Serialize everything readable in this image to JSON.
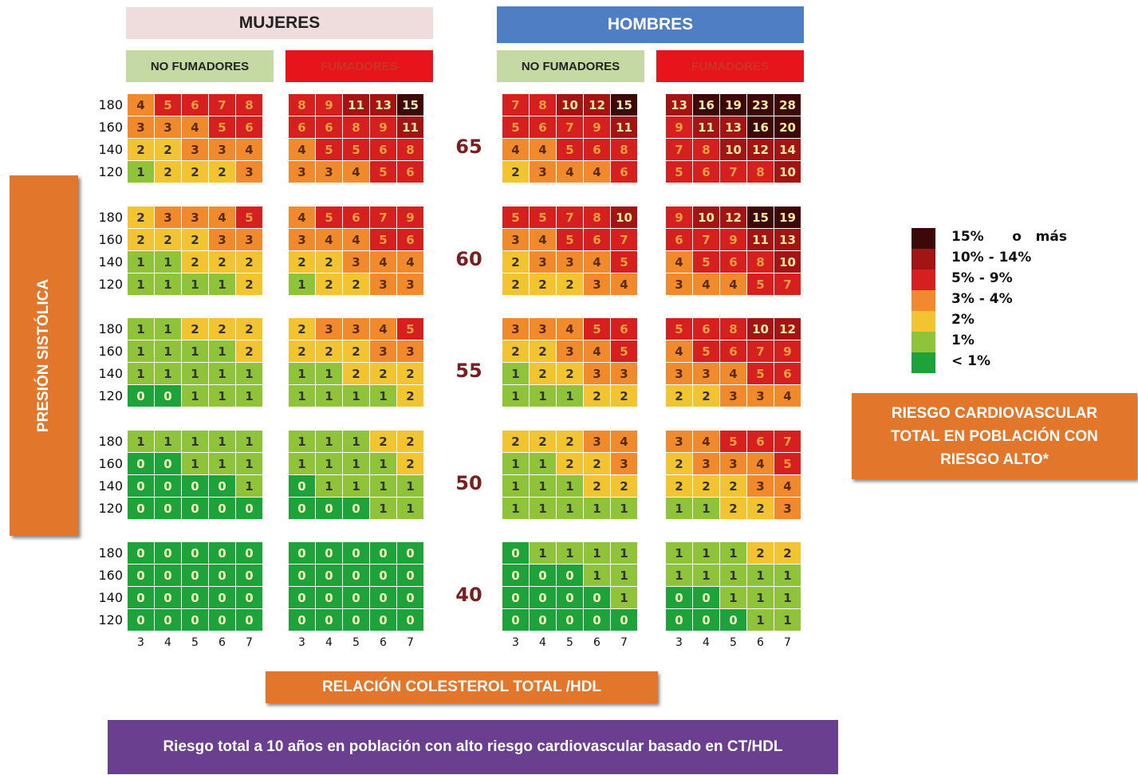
{
  "header": {
    "women": "MUJERES",
    "men": "HOMBRES",
    "non_smokers": "NO FUMADORES",
    "smokers": "FUMADORES"
  },
  "y_axis_label": "PRESIÓN SISTÓLICA",
  "x_axis_label": "RELACIÓN COLESTEROL TOTAL /HDL",
  "side_box": "RIESGO CARDIOVASCULAR TOTAL EN POBLACIÓN CON RIESGO ALTO*",
  "footer": "Riesgo total a 10 años en población con alto riesgo cardiovascular basado en CT/HDL",
  "legend": [
    {
      "label": "15%      o   más",
      "color": "#3d0808"
    },
    {
      "label": "10% - 14%",
      "color": "#a31515"
    },
    {
      "label": "5% - 9%",
      "color": "#d62020"
    },
    {
      "label": "3% - 4%",
      "color": "#f08a2c"
    },
    {
      "label": "2%",
      "color": "#f2c431"
    },
    {
      "label": "1%",
      "color": "#8fc43a"
    },
    {
      "label": "< 1%",
      "color": "#1ea33a"
    }
  ],
  "chart_data": {
    "type": "heatmap",
    "title": "",
    "xlabel": "RELACIÓN COLESTEROL TOTAL /HDL",
    "ylabel": "PRESIÓN SISTÓLICA",
    "x_ticks": [
      3,
      4,
      5,
      6,
      7
    ],
    "y_ticks": [
      180,
      160,
      140,
      120
    ],
    "ages": [
      65,
      60,
      55,
      50,
      40
    ],
    "panels": [
      {
        "sex": "MUJERES",
        "smoking": "NO FUMADORES",
        "grids": [
          [
            [
              4,
              5,
              6,
              7,
              8
            ],
            [
              3,
              3,
              4,
              5,
              6
            ],
            [
              2,
              2,
              3,
              3,
              4
            ],
            [
              1,
              2,
              2,
              2,
              3
            ]
          ],
          [
            [
              2,
              3,
              3,
              4,
              5
            ],
            [
              2,
              2,
              2,
              3,
              3
            ],
            [
              1,
              1,
              2,
              2,
              2
            ],
            [
              1,
              1,
              1,
              1,
              2
            ]
          ],
          [
            [
              1,
              1,
              2,
              2,
              2
            ],
            [
              1,
              1,
              1,
              1,
              2
            ],
            [
              1,
              1,
              1,
              1,
              1
            ],
            [
              0,
              0,
              1,
              1,
              1
            ]
          ],
          [
            [
              1,
              1,
              1,
              1,
              1
            ],
            [
              0,
              0,
              1,
              1,
              1
            ],
            [
              0,
              0,
              0,
              0,
              1
            ],
            [
              0,
              0,
              0,
              0,
              0
            ]
          ],
          [
            [
              0,
              0,
              0,
              0,
              0
            ],
            [
              0,
              0,
              0,
              0,
              0
            ],
            [
              0,
              0,
              0,
              0,
              0
            ],
            [
              0,
              0,
              0,
              0,
              0
            ]
          ]
        ]
      },
      {
        "sex": "MUJERES",
        "smoking": "FUMADORES",
        "grids": [
          [
            [
              8,
              9,
              11,
              13,
              15
            ],
            [
              6,
              6,
              8,
              9,
              11
            ],
            [
              4,
              5,
              5,
              6,
              8
            ],
            [
              3,
              3,
              4,
              5,
              6
            ]
          ],
          [
            [
              4,
              5,
              6,
              7,
              9
            ],
            [
              3,
              4,
              4,
              5,
              6
            ],
            [
              2,
              2,
              3,
              4,
              4
            ],
            [
              1,
              2,
              2,
              3,
              3
            ]
          ],
          [
            [
              2,
              3,
              3,
              4,
              5
            ],
            [
              2,
              2,
              2,
              3,
              3
            ],
            [
              1,
              1,
              2,
              2,
              2
            ],
            [
              1,
              1,
              1,
              1,
              2
            ]
          ],
          [
            [
              1,
              1,
              1,
              2,
              2
            ],
            [
              1,
              1,
              1,
              1,
              2
            ],
            [
              0,
              1,
              1,
              1,
              1
            ],
            [
              0,
              0,
              0,
              1,
              1
            ]
          ],
          [
            [
              0,
              0,
              0,
              0,
              0
            ],
            [
              0,
              0,
              0,
              0,
              0
            ],
            [
              0,
              0,
              0,
              0,
              0
            ],
            [
              0,
              0,
              0,
              0,
              0
            ]
          ]
        ]
      },
      {
        "sex": "HOMBRES",
        "smoking": "NO FUMADORES",
        "grids": [
          [
            [
              7,
              8,
              10,
              12,
              15
            ],
            [
              5,
              6,
              7,
              9,
              11
            ],
            [
              4,
              4,
              5,
              6,
              8
            ],
            [
              2,
              3,
              4,
              4,
              6
            ]
          ],
          [
            [
              5,
              5,
              7,
              8,
              10
            ],
            [
              3,
              4,
              5,
              6,
              7
            ],
            [
              2,
              3,
              3,
              4,
              5
            ],
            [
              2,
              2,
              2,
              3,
              4
            ]
          ],
          [
            [
              3,
              3,
              4,
              5,
              6
            ],
            [
              2,
              2,
              3,
              4,
              5
            ],
            [
              1,
              2,
              2,
              3,
              3
            ],
            [
              1,
              1,
              1,
              2,
              2
            ]
          ],
          [
            [
              2,
              2,
              2,
              3,
              4
            ],
            [
              1,
              1,
              2,
              2,
              3
            ],
            [
              1,
              1,
              1,
              2,
              2
            ],
            [
              1,
              1,
              1,
              1,
              1
            ]
          ],
          [
            [
              0,
              1,
              1,
              1,
              1
            ],
            [
              0,
              0,
              0,
              1,
              1
            ],
            [
              0,
              0,
              0,
              0,
              1
            ],
            [
              0,
              0,
              0,
              0,
              0
            ]
          ]
        ]
      },
      {
        "sex": "HOMBRES",
        "smoking": "FUMADORES",
        "grids": [
          [
            [
              13,
              16,
              19,
              23,
              28
            ],
            [
              9,
              11,
              13,
              16,
              20
            ],
            [
              7,
              8,
              10,
              12,
              14
            ],
            [
              5,
              6,
              7,
              8,
              10
            ]
          ],
          [
            [
              9,
              10,
              12,
              15,
              19
            ],
            [
              6,
              7,
              9,
              11,
              13
            ],
            [
              4,
              5,
              6,
              8,
              10
            ],
            [
              3,
              4,
              4,
              5,
              7
            ]
          ],
          [
            [
              5,
              6,
              8,
              10,
              12
            ],
            [
              4,
              5,
              6,
              7,
              9
            ],
            [
              3,
              3,
              4,
              5,
              6
            ],
            [
              2,
              2,
              3,
              3,
              4
            ]
          ],
          [
            [
              3,
              4,
              5,
              6,
              7
            ],
            [
              2,
              3,
              3,
              4,
              5
            ],
            [
              2,
              2,
              2,
              3,
              4
            ],
            [
              1,
              1,
              2,
              2,
              3
            ]
          ],
          [
            [
              1,
              1,
              1,
              2,
              2
            ],
            [
              1,
              1,
              1,
              1,
              1
            ],
            [
              0,
              0,
              1,
              1,
              1
            ],
            [
              0,
              0,
              0,
              1,
              1
            ]
          ]
        ]
      }
    ]
  }
}
